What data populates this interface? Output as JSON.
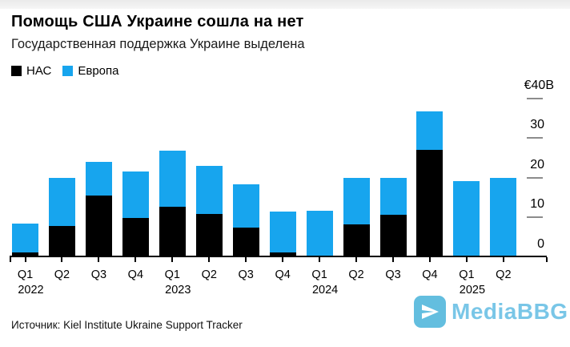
{
  "header": {
    "title": "Помощь США Украине сошла на нет",
    "subtitle": "Государственная поддержка Украине выделена"
  },
  "legend": [
    {
      "label": "НАС",
      "color": "#000000"
    },
    {
      "label": "Европа",
      "color": "#17a5ee"
    }
  ],
  "chart_data": {
    "type": "bar",
    "stacked": true,
    "title": "Помощь США Украине сошла на нет",
    "subtitle": "Государственная поддержка Украине выделена",
    "unit": "€B",
    "categories": [
      "Q1",
      "Q2",
      "Q3",
      "Q4",
      "Q1",
      "Q2",
      "Q3",
      "Q4",
      "Q1",
      "Q2",
      "Q3",
      "Q4",
      "Q1",
      "Q2"
    ],
    "year_markers": [
      {
        "index": 0,
        "label": "2022"
      },
      {
        "index": 4,
        "label": "2023"
      },
      {
        "index": 8,
        "label": "2024"
      },
      {
        "index": 12,
        "label": "2025"
      }
    ],
    "series": [
      {
        "key": "us",
        "name": "НАС",
        "color": "#000000",
        "values": [
          1.3,
          7.8,
          15.6,
          9.9,
          12.7,
          10.9,
          7.5,
          1.3,
          0.3,
          8.2,
          10.7,
          27.0,
          0.4,
          0
        ]
      },
      {
        "key": "europe",
        "name": "Европа",
        "color": "#17a5ee",
        "values": [
          7.1,
          12.2,
          8.3,
          11.7,
          14.1,
          12.0,
          10.9,
          10.1,
          11.3,
          11.8,
          9.3,
          9.8,
          18.8,
          20.0
        ]
      }
    ],
    "ylim": [
      0,
      40
    ],
    "yticks": [
      {
        "value": 40,
        "label": "€40B"
      },
      {
        "value": 30,
        "label": "30"
      },
      {
        "value": 20,
        "label": "20"
      },
      {
        "value": 10,
        "label": "10"
      },
      {
        "value": 0,
        "label": "0"
      }
    ],
    "grid": false,
    "legend_position": "top-left",
    "axis_side": "right"
  },
  "source": "Источник: Kiel Institute Ukraine Support Tracker",
  "watermark": {
    "text": "MediaBBG",
    "icon": "paper-plane-icon",
    "icon_bg": "#63bedf",
    "text_color": "#79c6e7"
  }
}
